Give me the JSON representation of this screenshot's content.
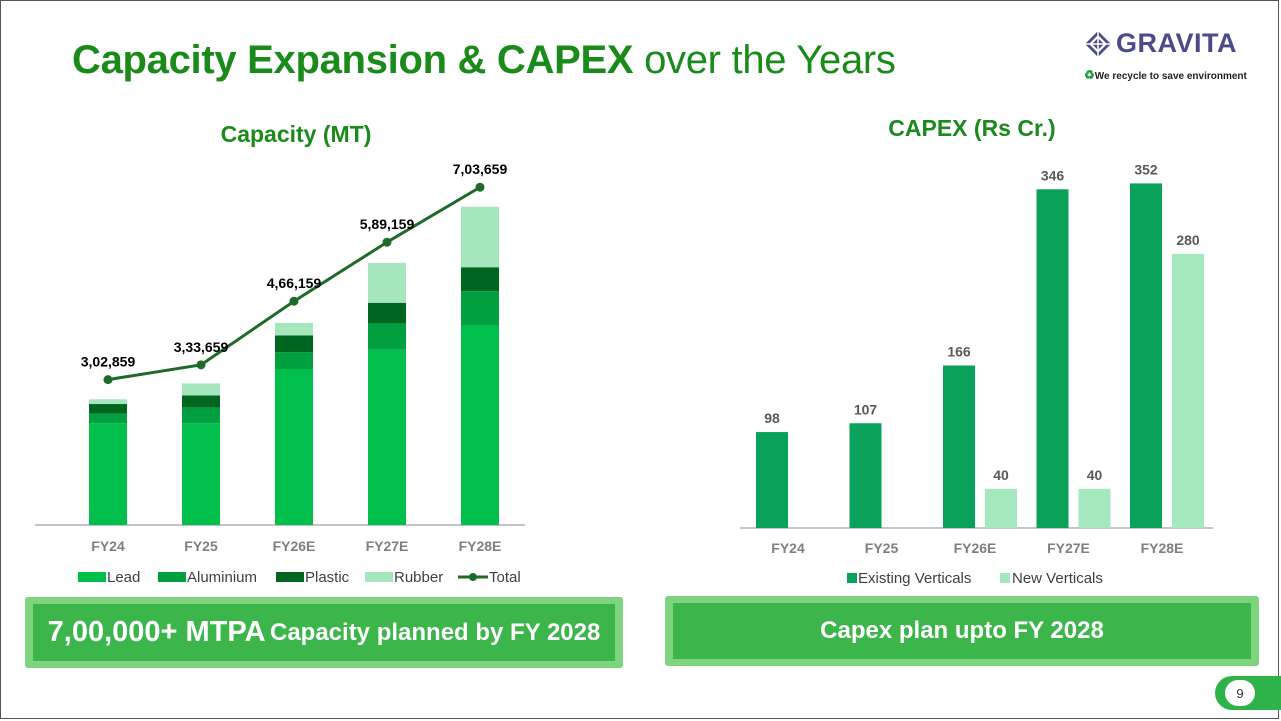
{
  "title": {
    "bold": "Capacity Expansion & CAPEX",
    "light": "over the Years"
  },
  "logo": {
    "name": "GRAVITA",
    "tagline": "We recycle to save environment",
    "icon": "gravita-diamond-logo-icon",
    "tag_icon": "recycle-icon"
  },
  "colors": {
    "title_green": "#1a8a1a",
    "lead": "#00c04b",
    "aluminium": "#00a040",
    "plastic": "#00651f",
    "rubber": "#a6e6bd",
    "total_line": "#1f6a2a",
    "existing": "#0aa25a",
    "new": "#a6e8bd",
    "callout_bg": "#3cb54a",
    "callout_border": "#7ed37e"
  },
  "chart_data": [
    {
      "type": "bar",
      "stacked": true,
      "title": "Capacity (MT)",
      "categories": [
        "FY24",
        "FY25",
        "FY26E",
        "FY27E",
        "FY28E"
      ],
      "series": [
        {
          "name": "Lead",
          "values": [
            212000,
            212000,
            325000,
            365000,
            415000
          ]
        },
        {
          "name": "Aluminium",
          "values": [
            20000,
            33000,
            35000,
            55000,
            72000
          ]
        },
        {
          "name": "Plastic",
          "values": [
            20000,
            25000,
            35000,
            43000,
            50000
          ]
        },
        {
          "name": "Rubber",
          "values": [
            10000,
            25000,
            26000,
            83000,
            126000
          ]
        }
      ],
      "line": {
        "name": "Total",
        "values": [
          302859,
          333659,
          466159,
          589159,
          703659
        ],
        "labels": [
          "3,02,859",
          "3,33,659",
          "4,66,159",
          "5,89,159",
          "7,03,659"
        ]
      },
      "ylim": [
        0,
        750000
      ],
      "legend": "bottom",
      "grid": false
    },
    {
      "type": "bar",
      "stacked": false,
      "title": "CAPEX (Rs Cr.)",
      "categories": [
        "FY24",
        "FY25",
        "FY26E",
        "FY27E",
        "FY28E"
      ],
      "series": [
        {
          "name": "Existing Verticals",
          "values": [
            98,
            107,
            166,
            346,
            352
          ]
        },
        {
          "name": "New Verticals",
          "values": [
            null,
            null,
            40,
            40,
            280
          ]
        }
      ],
      "ylim": [
        0,
        380
      ],
      "legend": "bottom",
      "grid": false
    }
  ],
  "callouts": {
    "left_big": "7,00,000+ MTPA",
    "left_small": "Capacity planned by FY 2028",
    "right": "Capex plan upto FY 2028"
  },
  "page_number": "9"
}
